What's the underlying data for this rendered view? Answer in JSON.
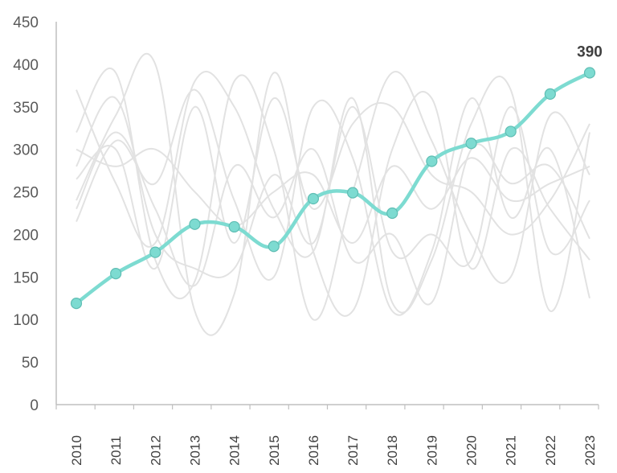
{
  "chart_data": {
    "type": "line",
    "title": "",
    "xlabel": "",
    "ylabel": "",
    "x": [
      "2010",
      "2011",
      "2012",
      "2013",
      "2014",
      "2015",
      "2016",
      "2017",
      "2018",
      "2019",
      "2020",
      "2021",
      "2022",
      "2023"
    ],
    "ylim": [
      0,
      450
    ],
    "yticks": [
      0,
      50,
      100,
      150,
      200,
      250,
      300,
      350,
      400,
      450
    ],
    "grid": false,
    "highlight_color": "#7ddbd1",
    "background_color": "#e2e2e2",
    "series": [
      {
        "highlight": true,
        "values": [
          119,
          154,
          179,
          212,
          209,
          186,
          242,
          249,
          225,
          286,
          307,
          321,
          365,
          390
        ]
      },
      {
        "highlight": false,
        "values": [
          370,
          260,
          190,
          380,
          350,
          230,
          180,
          360,
          120,
          170,
          330,
          370,
          110,
          320
        ]
      },
      {
        "highlight": false,
        "values": [
          320,
          390,
          170,
          145,
          380,
          300,
          100,
          250,
          390,
          310,
          200,
          150,
          340,
          270
        ]
      },
      {
        "highlight": false,
        "values": [
          240,
          340,
          400,
          110,
          130,
          390,
          180,
          110,
          300,
          360,
          160,
          300,
          230,
          170
        ]
      },
      {
        "highlight": false,
        "values": [
          215,
          310,
          260,
          370,
          240,
          150,
          350,
          290,
          110,
          180,
          360,
          220,
          300,
          125
        ]
      },
      {
        "highlight": false,
        "values": [
          280,
          360,
          200,
          160,
          160,
          270,
          190,
          350,
          180,
          200,
          170,
          350,
          180,
          240
        ]
      },
      {
        "highlight": false,
        "values": [
          230,
          320,
          230,
          140,
          280,
          220,
          300,
          170,
          200,
          120,
          300,
          260,
          280,
          195
        ]
      },
      {
        "highlight": false,
        "values": [
          265,
          300,
          160,
          350,
          190,
          360,
          230,
          330,
          350,
          270,
          250,
          200,
          240,
          330
        ]
      },
      {
        "highlight": false,
        "values": [
          300,
          280,
          300,
          250,
          210,
          250,
          270,
          190,
          280,
          230,
          290,
          240,
          260,
          280
        ]
      }
    ],
    "annotation": "390"
  }
}
